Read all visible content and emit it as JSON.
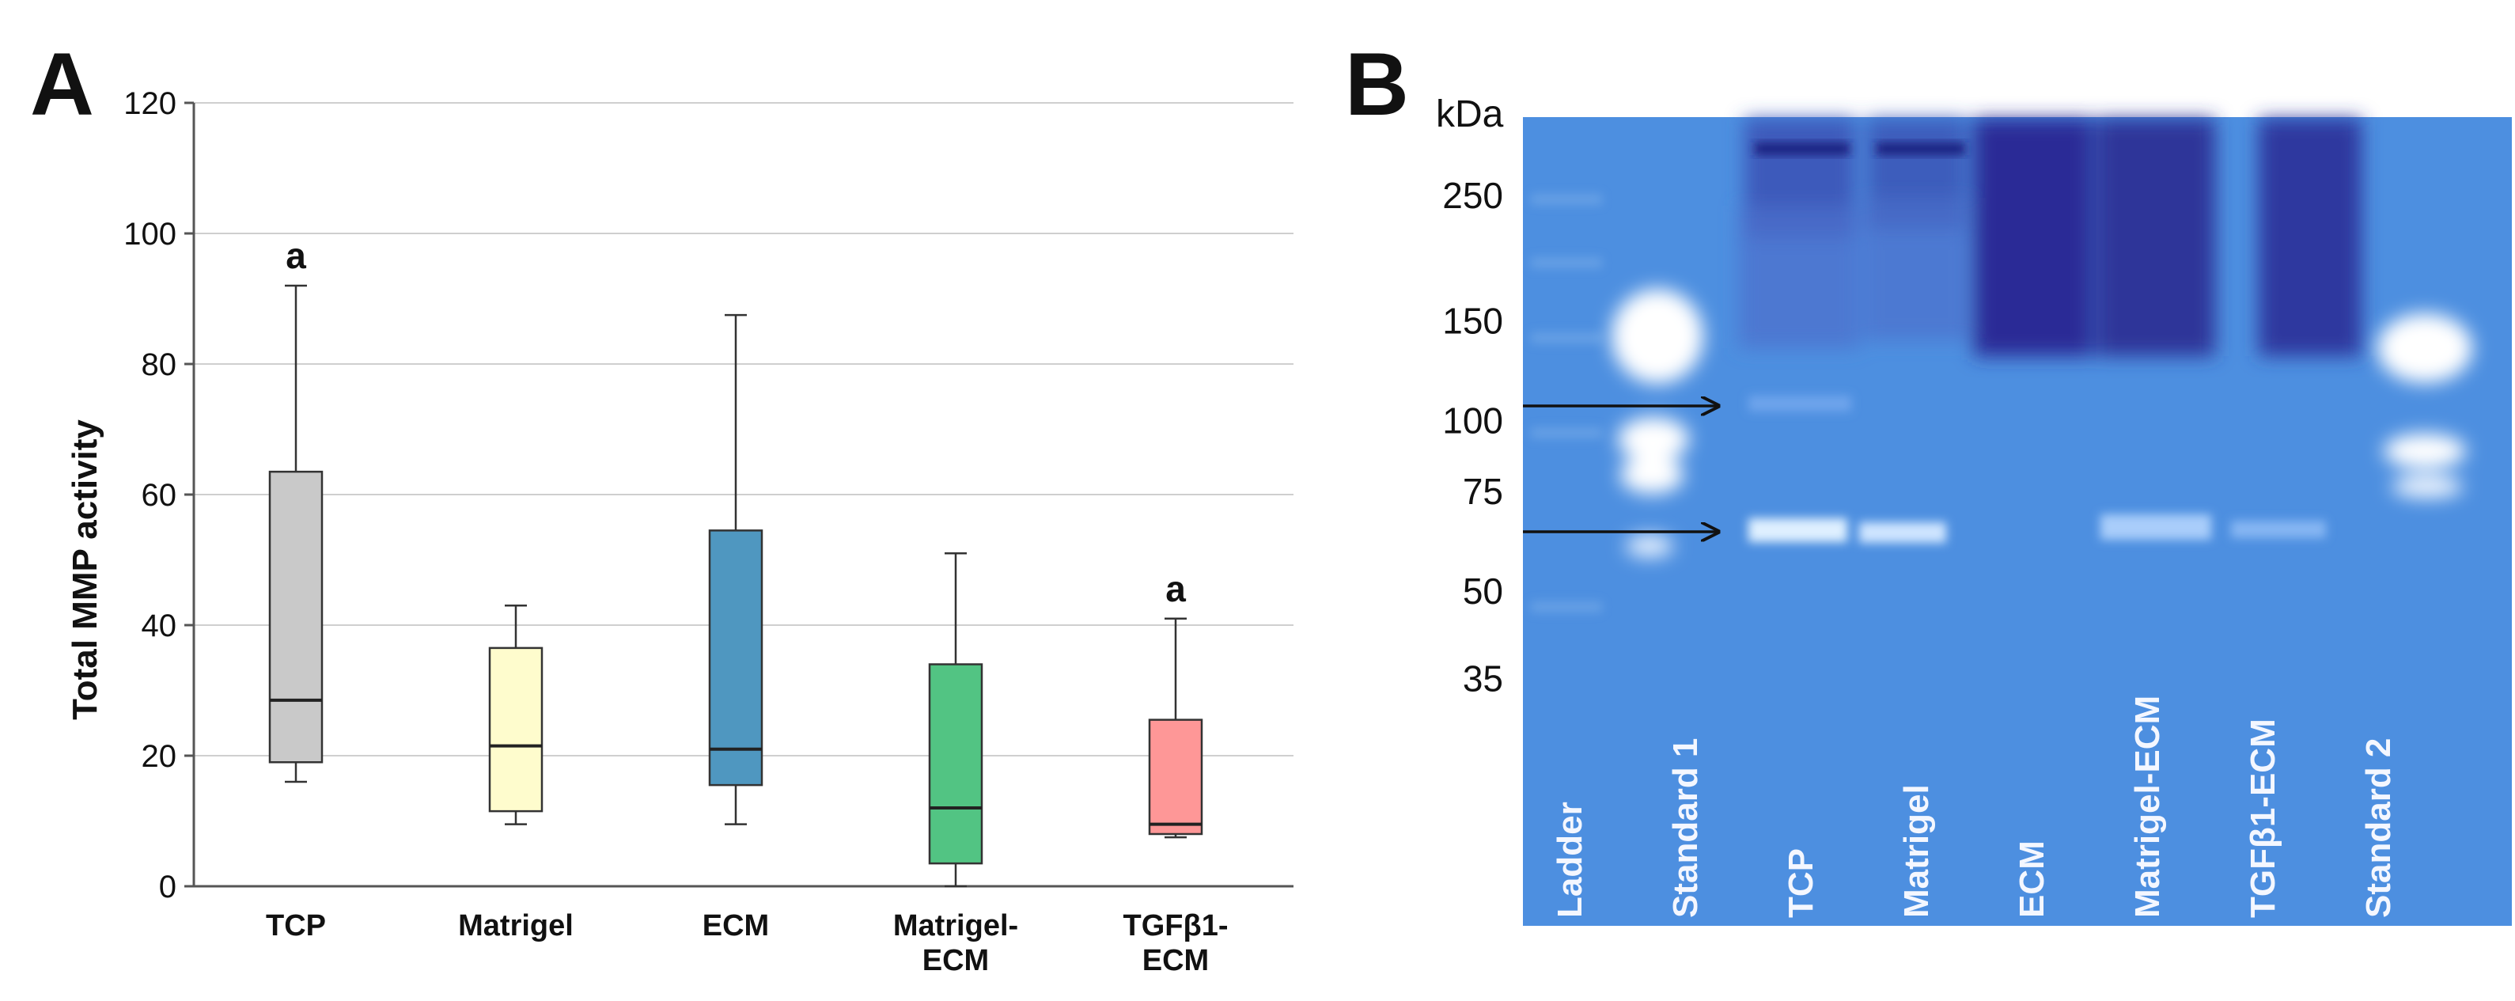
{
  "panels": {
    "a_label": "A",
    "b_label": "B"
  },
  "chart_data": {
    "type": "box",
    "ylabel": "Total MMP activity",
    "xlabel": "",
    "ylim": [
      0,
      120
    ],
    "yticks": [
      0,
      20,
      40,
      60,
      80,
      100,
      120
    ],
    "grid": true,
    "boxes": [
      {
        "name_lines": [
          "TCP"
        ],
        "min": 16,
        "q1": 19,
        "median": 28.5,
        "q3": 63.5,
        "max": 92,
        "annotation": "a",
        "color": "#c9c9c9"
      },
      {
        "name_lines": [
          "Matrigel"
        ],
        "min": 9.5,
        "q1": 11.5,
        "median": 21.5,
        "q3": 36.5,
        "max": 43,
        "annotation": "",
        "color": "#fefccd"
      },
      {
        "name_lines": [
          "ECM"
        ],
        "min": 9.5,
        "q1": 15.5,
        "median": 21,
        "q3": 54.5,
        "max": 87.5,
        "annotation": "",
        "color": "#4f97c0"
      },
      {
        "name_lines": [
          "Matrigel-",
          "ECM"
        ],
        "min": 0,
        "q1": 3.5,
        "median": 12,
        "q3": 34,
        "max": 51,
        "annotation": "",
        "color": "#52c483"
      },
      {
        "name_lines": [
          "TGFβ1-",
          "ECM"
        ],
        "min": 7.5,
        "q1": 8,
        "median": 9.5,
        "q3": 25.5,
        "max": 41,
        "annotation": "a",
        "color": "#fe9797"
      }
    ]
  },
  "gel": {
    "unit_label": "kDa",
    "markers": [
      "250",
      "150",
      "100",
      "75",
      "50",
      "35"
    ],
    "marker_kda": [
      250,
      150,
      100,
      75,
      50,
      35
    ],
    "lanes": [
      "Ladder",
      "Standard 1",
      "TCP",
      "Matrigel",
      "ECM",
      "Matrigel-ECM",
      "TGFβ1-ECM",
      "Standard 2"
    ],
    "arrows": 2,
    "background_color": "#4d8fe0",
    "digest_band_color": "#2a2c96",
    "clear_band_color": "#ffffff"
  }
}
